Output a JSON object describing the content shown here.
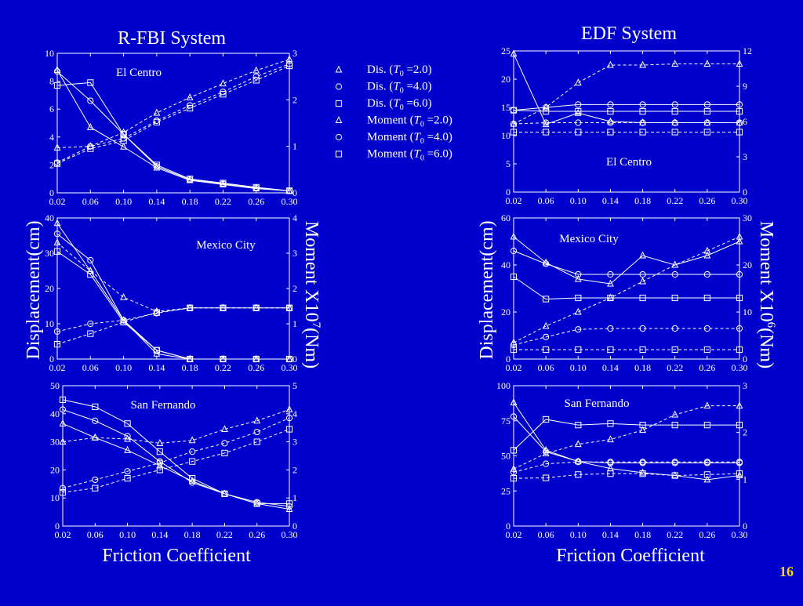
{
  "page_number": "16",
  "legend": [
    {
      "marker": "triangle",
      "style": "solid",
      "pre": "Dis. (",
      "var": "T",
      "sub": "0",
      "post": " =2.0)"
    },
    {
      "marker": "circle",
      "style": "solid",
      "pre": "Dis. (",
      "var": "T",
      "sub": "0",
      "post": " =4.0)"
    },
    {
      "marker": "square",
      "style": "solid",
      "pre": "Dis. (",
      "var": "T",
      "sub": "0",
      "post": " =6.0)"
    },
    {
      "marker": "triangle",
      "style": "dashed",
      "pre": "Moment (",
      "var": "T",
      "sub": "0",
      "post": " =2.0)"
    },
    {
      "marker": "circle",
      "style": "dashed",
      "pre": "Moment (",
      "var": "T",
      "sub": "0",
      "post": " =4.0)"
    },
    {
      "marker": "square",
      "style": "dashed",
      "pre": "Moment (",
      "var": "T",
      "sub": "0",
      "post": " =6.0)"
    }
  ],
  "columns": [
    {
      "title": "R-FBI System",
      "xlabel": "Friction Coefficient",
      "ylabel": "Displacement(cm)",
      "y2label_base": "Moment X10",
      "y2label_exp": "7",
      "y2label_unit": "(Nm)"
    },
    {
      "title": "EDF System",
      "xlabel": "Friction Coefficient",
      "ylabel": "Displacement(cm)",
      "y2label_base": "Moment X10",
      "y2label_exp": "6",
      "y2label_unit": "(Nm)"
    }
  ],
  "chart_data": [
    {
      "type": "line",
      "system": "R-FBI System",
      "panel_label": "El Centro",
      "x": [
        0.02,
        0.06,
        0.1,
        0.14,
        0.18,
        0.22,
        0.26,
        0.3
      ],
      "xticks": [
        "0.02",
        "0.06",
        "0.10",
        "0.14",
        "0.18",
        "0.22",
        "0.26",
        "0.30"
      ],
      "ylim": [
        0,
        10
      ],
      "yticks": [
        0,
        2,
        4,
        6,
        8,
        10
      ],
      "y2lim": [
        0,
        3
      ],
      "y2ticks": [
        0,
        1,
        2,
        3
      ],
      "series": [
        {
          "axis": "left",
          "marker": "triangle",
          "values": [
            8.8,
            4.7,
            3.3,
            1.8,
            0.9,
            0.6,
            0.3,
            0.15
          ]
        },
        {
          "axis": "left",
          "marker": "circle",
          "values": [
            8.7,
            6.6,
            4.2,
            1.9,
            0.95,
            0.65,
            0.35,
            0.15
          ]
        },
        {
          "axis": "left",
          "marker": "square",
          "values": [
            7.7,
            7.9,
            4.2,
            2.0,
            1.0,
            0.7,
            0.4,
            0.15
          ]
        },
        {
          "axis": "right",
          "marker": "triangle",
          "values": [
            0.97,
            1.0,
            1.3,
            1.72,
            2.05,
            2.35,
            2.63,
            2.87
          ]
        },
        {
          "axis": "right",
          "marker": "circle",
          "values": [
            0.65,
            1.0,
            1.17,
            1.55,
            1.88,
            2.17,
            2.5,
            2.77
          ]
        },
        {
          "axis": "right",
          "marker": "square",
          "values": [
            0.63,
            0.95,
            1.12,
            1.52,
            1.82,
            2.12,
            2.42,
            2.73
          ]
        }
      ]
    },
    {
      "type": "line",
      "system": "R-FBI System",
      "panel_label": "Mexico City",
      "x": [
        0.02,
        0.06,
        0.1,
        0.14,
        0.18,
        0.22,
        0.26,
        0.3
      ],
      "xticks": [
        "0.02",
        "0.06",
        "0.10",
        "0.14",
        "0.18",
        "0.22",
        "0.26",
        "0.30"
      ],
      "ylim": [
        0,
        40
      ],
      "yticks": [
        0,
        10,
        20,
        30,
        40
      ],
      "y2lim": [
        0,
        4
      ],
      "y2ticks": [
        0,
        1,
        2,
        3,
        4
      ],
      "series": [
        {
          "axis": "left",
          "marker": "triangle",
          "values": [
            38.5,
            25,
            11,
            1.5,
            0,
            0,
            0,
            0
          ]
        },
        {
          "axis": "left",
          "marker": "circle",
          "values": [
            35.5,
            28,
            11,
            2.5,
            0,
            0,
            0,
            0
          ]
        },
        {
          "axis": "left",
          "marker": "square",
          "values": [
            30.5,
            24,
            10.5,
            2.5,
            0,
            0,
            0,
            0
          ]
        },
        {
          "axis": "right",
          "marker": "triangle",
          "values": [
            3.3,
            2.5,
            1.75,
            1.35,
            1.45,
            1.45,
            1.45,
            1.45
          ]
        },
        {
          "axis": "right",
          "marker": "circle",
          "values": [
            0.78,
            1.0,
            1.1,
            1.3,
            1.45,
            1.45,
            1.45,
            1.45
          ]
        },
        {
          "axis": "right",
          "marker": "square",
          "values": [
            0.42,
            0.72,
            1.05,
            1.32,
            1.45,
            1.45,
            1.45,
            1.45
          ]
        }
      ]
    },
    {
      "type": "line",
      "system": "R-FBI System",
      "panel_label": "San Fernando",
      "x": [
        0.02,
        0.06,
        0.1,
        0.14,
        0.18,
        0.22,
        0.26,
        0.3
      ],
      "xticks": [
        "0.02",
        "0.06",
        "0.10",
        "0.14",
        "0.18",
        "0.22",
        "0.26",
        "0.30"
      ],
      "ylim": [
        0,
        50
      ],
      "yticks": [
        0,
        10,
        20,
        30,
        40,
        50
      ],
      "y2lim": [
        0,
        5
      ],
      "y2ticks": [
        0,
        1,
        2,
        3,
        4,
        5
      ],
      "series": [
        {
          "axis": "left",
          "marker": "triangle",
          "values": [
            36.5,
            31.5,
            27,
            21.5,
            16,
            11.5,
            8,
            6
          ]
        },
        {
          "axis": "left",
          "marker": "circle",
          "values": [
            41.5,
            37.5,
            32,
            23,
            15.5,
            11.5,
            8.5,
            7
          ]
        },
        {
          "axis": "left",
          "marker": "square",
          "values": [
            45,
            42.5,
            36.5,
            26.5,
            17,
            11.5,
            8,
            8
          ]
        },
        {
          "axis": "right",
          "marker": "triangle",
          "values": [
            3.0,
            3.15,
            3.1,
            2.95,
            3.05,
            3.45,
            3.75,
            4.15
          ]
        },
        {
          "axis": "right",
          "marker": "circle",
          "values": [
            1.35,
            1.65,
            1.95,
            2.25,
            2.65,
            2.95,
            3.35,
            3.85
          ]
        },
        {
          "axis": "right",
          "marker": "square",
          "values": [
            1.2,
            1.35,
            1.7,
            2.0,
            2.3,
            2.6,
            3.0,
            3.45
          ]
        }
      ]
    },
    {
      "type": "line",
      "system": "EDF System",
      "panel_label": "El Centro",
      "x": [
        0.02,
        0.06,
        0.1,
        0.14,
        0.18,
        0.22,
        0.26,
        0.3
      ],
      "xticks": [
        "0.02",
        "0.06",
        "0.10",
        "0.14",
        "0.18",
        "0.22",
        "0.26",
        "0.30"
      ],
      "ylim": [
        0,
        25
      ],
      "yticks": [
        0,
        5,
        10,
        15,
        20,
        25
      ],
      "y2lim": [
        0,
        12
      ],
      "y2ticks": [
        0,
        3,
        6,
        9,
        12
      ],
      "series": [
        {
          "axis": "left",
          "marker": "triangle",
          "values": [
            24.5,
            12.0,
            14.0,
            12.5,
            12.3,
            12.3,
            12.3,
            12.3
          ]
        },
        {
          "axis": "left",
          "marker": "circle",
          "values": [
            14.5,
            15.0,
            15.5,
            15.5,
            15.5,
            15.5,
            15.5,
            15.5
          ]
        },
        {
          "axis": "left",
          "marker": "square",
          "values": [
            14.5,
            14.3,
            14.3,
            14.3,
            14.3,
            14.3,
            14.3,
            14.3
          ]
        },
        {
          "axis": "right",
          "marker": "triangle",
          "values": [
            5.8,
            7.2,
            9.3,
            10.8,
            10.8,
            10.9,
            10.9,
            10.9
          ]
        },
        {
          "axis": "right",
          "marker": "circle",
          "values": [
            5.8,
            5.9,
            5.9,
            5.9,
            5.9,
            5.9,
            5.9,
            5.9
          ]
        },
        {
          "axis": "right",
          "marker": "square",
          "values": [
            5.1,
            5.1,
            5.1,
            5.1,
            5.1,
            5.1,
            5.1,
            5.1
          ]
        }
      ]
    },
    {
      "type": "line",
      "system": "EDF System",
      "panel_label": "Mexico City",
      "x": [
        0.02,
        0.06,
        0.1,
        0.14,
        0.18,
        0.22,
        0.26,
        0.3
      ],
      "xticks": [
        "0.02",
        "0.06",
        "0.10",
        "0.14",
        "0.18",
        "0.22",
        "0.26",
        "0.30"
      ],
      "ylim": [
        0,
        60
      ],
      "yticks": [
        0,
        20,
        40,
        60
      ],
      "y2lim": [
        0,
        30
      ],
      "y2ticks": [
        0,
        10,
        20,
        30
      ],
      "series": [
        {
          "axis": "left",
          "marker": "triangle",
          "values": [
            52,
            41,
            34,
            32,
            44,
            40,
            44,
            50
          ]
        },
        {
          "axis": "left",
          "marker": "circle",
          "values": [
            46,
            40.5,
            36,
            36,
            36,
            36,
            36,
            36
          ]
        },
        {
          "axis": "left",
          "marker": "square",
          "values": [
            35,
            25.5,
            26,
            26,
            26,
            26,
            26,
            26
          ]
        },
        {
          "axis": "right",
          "marker": "triangle",
          "values": [
            3.5,
            7,
            10,
            13,
            16.5,
            20,
            23,
            26
          ]
        },
        {
          "axis": "right",
          "marker": "circle",
          "values": [
            3.0,
            4.7,
            6.3,
            6.5,
            6.5,
            6.5,
            6.5,
            6.5
          ]
        },
        {
          "axis": "right",
          "marker": "square",
          "values": [
            2.0,
            2.0,
            2.0,
            2.0,
            2.0,
            2.0,
            2.0,
            2.0
          ]
        }
      ]
    },
    {
      "type": "line",
      "system": "EDF System",
      "panel_label": "San Fernando",
      "x": [
        0.02,
        0.06,
        0.1,
        0.14,
        0.18,
        0.22,
        0.26,
        0.3
      ],
      "xticks": [
        "0.02",
        "0.06",
        "0.10",
        "0.14",
        "0.18",
        "0.22",
        "0.26",
        "0.30"
      ],
      "ylim": [
        0,
        100
      ],
      "yticks": [
        0,
        25,
        50,
        75,
        100
      ],
      "y2lim": [
        0,
        3
      ],
      "y2ticks": [
        0,
        1,
        2,
        3
      ],
      "series": [
        {
          "axis": "left",
          "marker": "triangle",
          "values": [
            88,
            54,
            46,
            41,
            38,
            36,
            33,
            36
          ]
        },
        {
          "axis": "left",
          "marker": "circle",
          "values": [
            78,
            53,
            46,
            45,
            45,
            45,
            45,
            45
          ]
        },
        {
          "axis": "left",
          "marker": "square",
          "values": [
            54,
            76,
            72,
            73,
            72,
            72,
            72,
            72
          ]
        },
        {
          "axis": "right",
          "marker": "triangle",
          "values": [
            1.22,
            1.55,
            1.75,
            1.85,
            2.05,
            2.38,
            2.57,
            2.57
          ]
        },
        {
          "axis": "right",
          "marker": "circle",
          "values": [
            1.15,
            1.33,
            1.37,
            1.37,
            1.37,
            1.37,
            1.37,
            1.37
          ]
        },
        {
          "axis": "right",
          "marker": "square",
          "values": [
            1.02,
            1.03,
            1.1,
            1.12,
            1.12,
            1.08,
            1.1,
            1.12
          ]
        }
      ]
    }
  ]
}
